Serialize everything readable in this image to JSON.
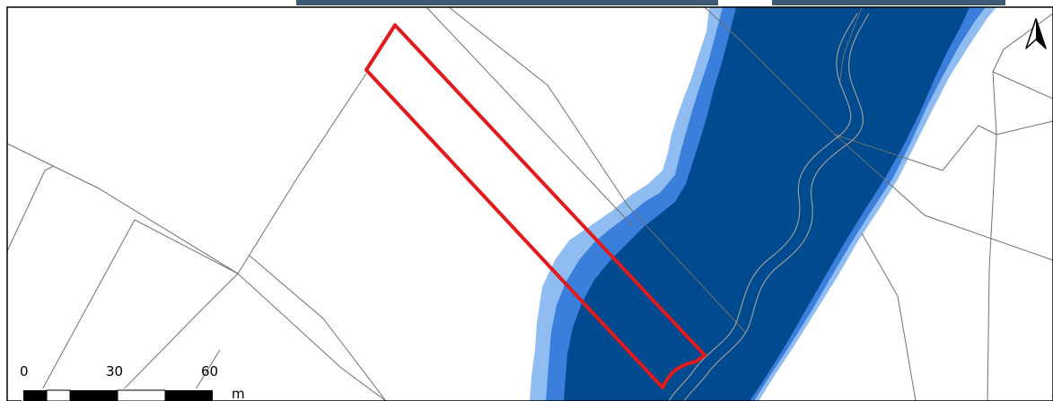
{
  "map": {
    "type": "flood-zone parcel map",
    "colors": {
      "flood_deep": "#004a8f",
      "flood_medium": "#3b7fdd",
      "flood_light": "#8fbdf2",
      "parcel_highlight": "#e31a1c",
      "cadastral_lines": "#707070",
      "watercourse": "#9a9a9a",
      "frame": "#000000",
      "title_fragment": "#1b3c5a"
    },
    "north_arrow": {
      "icon": "north-arrow-icon"
    },
    "scale_bar": {
      "ticks": [
        "0",
        "30",
        "60"
      ],
      "unit": "m"
    }
  }
}
